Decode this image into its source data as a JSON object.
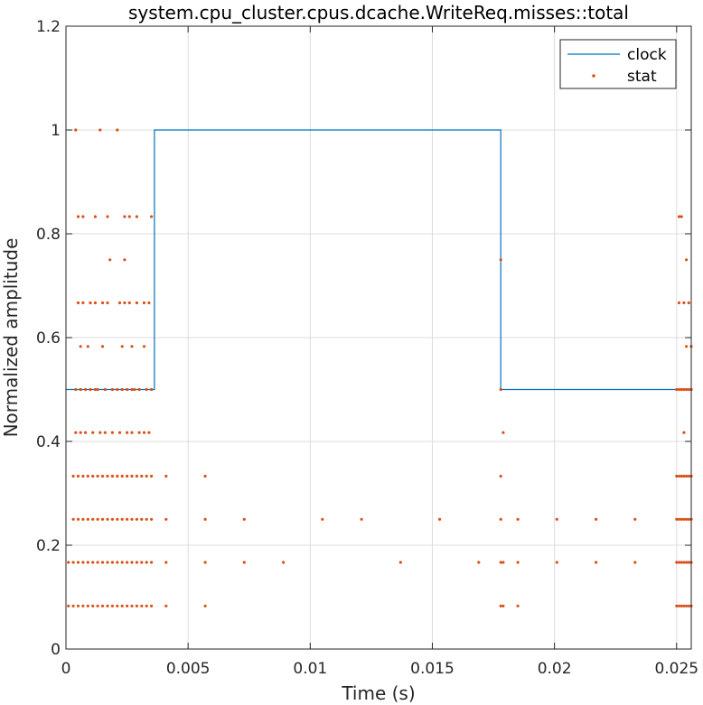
{
  "chart_data": {
    "type": "line",
    "title": "system.cpu_cluster.cpus.dcache.WriteReq.misses::total",
    "xlabel": "Time (s)",
    "ylabel": "Normalized amplitude",
    "xlim": [
      0,
      0.0256
    ],
    "ylim": [
      0,
      1.2
    ],
    "xticks": [
      0,
      0.005,
      0.01,
      0.015,
      0.02,
      0.025
    ],
    "xtick_labels": [
      "0",
      "0.005",
      "0.01",
      "0.015",
      "0.02",
      "0.025"
    ],
    "yticks": [
      0,
      0.2,
      0.4,
      0.6,
      0.8,
      1,
      1.2
    ],
    "ytick_labels": [
      "0",
      "0.2",
      "0.4",
      "0.6",
      "0.8",
      "1",
      "1.2"
    ],
    "grid": true,
    "legend_position": "top-right",
    "colors": {
      "clock": "#0072BD",
      "stat": "#D95319"
    },
    "series": [
      {
        "name": "clock",
        "kind": "step-line",
        "x": [
          0,
          0.00362,
          0.00362,
          0.0178,
          0.0178,
          0.0256
        ],
        "y": [
          0.5,
          0.5,
          1.0,
          1.0,
          0.5,
          0.5
        ]
      },
      {
        "name": "stat",
        "kind": "scatter",
        "points": [
          [
            0.0004,
            1.0
          ],
          [
            0.0014,
            1.0
          ],
          [
            0.0021,
            1.0
          ],
          [
            0.0005,
            0.833
          ],
          [
            0.0007,
            0.833
          ],
          [
            0.0012,
            0.833
          ],
          [
            0.0017,
            0.833
          ],
          [
            0.0024,
            0.833
          ],
          [
            0.0026,
            0.833
          ],
          [
            0.0029,
            0.833
          ],
          [
            0.0035,
            0.833
          ],
          [
            0.0018,
            0.75
          ],
          [
            0.0024,
            0.75
          ],
          [
            0.0005,
            0.667
          ],
          [
            0.0007,
            0.667
          ],
          [
            0.001,
            0.667
          ],
          [
            0.0012,
            0.667
          ],
          [
            0.0015,
            0.667
          ],
          [
            0.0017,
            0.667
          ],
          [
            0.0022,
            0.667
          ],
          [
            0.0024,
            0.667
          ],
          [
            0.0026,
            0.667
          ],
          [
            0.0029,
            0.667
          ],
          [
            0.0032,
            0.667
          ],
          [
            0.0034,
            0.667
          ],
          [
            0.0006,
            0.583
          ],
          [
            0.0009,
            0.583
          ],
          [
            0.0015,
            0.583
          ],
          [
            0.0023,
            0.583
          ],
          [
            0.0027,
            0.583
          ],
          [
            0.0032,
            0.583
          ],
          [
            0.0004,
            0.5
          ],
          [
            0.0006,
            0.5
          ],
          [
            0.0008,
            0.5
          ],
          [
            0.001,
            0.5
          ],
          [
            0.0012,
            0.5
          ],
          [
            0.0013,
            0.5
          ],
          [
            0.0016,
            0.5
          ],
          [
            0.0019,
            0.5
          ],
          [
            0.0021,
            0.5
          ],
          [
            0.0023,
            0.5
          ],
          [
            0.0025,
            0.5
          ],
          [
            0.0027,
            0.5
          ],
          [
            0.0028,
            0.5
          ],
          [
            0.003,
            0.5
          ],
          [
            0.0033,
            0.5
          ],
          [
            0.0035,
            0.5
          ],
          [
            0.0004,
            0.417
          ],
          [
            0.0006,
            0.417
          ],
          [
            0.0008,
            0.417
          ],
          [
            0.0011,
            0.417
          ],
          [
            0.0014,
            0.417
          ],
          [
            0.0016,
            0.417
          ],
          [
            0.0019,
            0.417
          ],
          [
            0.0022,
            0.417
          ],
          [
            0.0025,
            0.417
          ],
          [
            0.0027,
            0.417
          ],
          [
            0.003,
            0.417
          ],
          [
            0.0032,
            0.417
          ],
          [
            0.0034,
            0.417
          ],
          [
            0.0003,
            0.333
          ],
          [
            0.0005,
            0.333
          ],
          [
            0.0007,
            0.333
          ],
          [
            0.0009,
            0.333
          ],
          [
            0.0011,
            0.333
          ],
          [
            0.0013,
            0.333
          ],
          [
            0.0015,
            0.333
          ],
          [
            0.0017,
            0.333
          ],
          [
            0.0019,
            0.333
          ],
          [
            0.0021,
            0.333
          ],
          [
            0.0023,
            0.333
          ],
          [
            0.0025,
            0.333
          ],
          [
            0.0027,
            0.333
          ],
          [
            0.0029,
            0.333
          ],
          [
            0.0031,
            0.333
          ],
          [
            0.0033,
            0.333
          ],
          [
            0.0035,
            0.333
          ],
          [
            0.0041,
            0.333
          ],
          [
            0.0057,
            0.333
          ],
          [
            0.0003,
            0.25
          ],
          [
            0.0005,
            0.25
          ],
          [
            0.0007,
            0.25
          ],
          [
            0.0009,
            0.25
          ],
          [
            0.0011,
            0.25
          ],
          [
            0.0013,
            0.25
          ],
          [
            0.0015,
            0.25
          ],
          [
            0.0017,
            0.25
          ],
          [
            0.0019,
            0.25
          ],
          [
            0.0021,
            0.25
          ],
          [
            0.0023,
            0.25
          ],
          [
            0.0025,
            0.25
          ],
          [
            0.0027,
            0.25
          ],
          [
            0.0029,
            0.25
          ],
          [
            0.0031,
            0.25
          ],
          [
            0.0033,
            0.25
          ],
          [
            0.0035,
            0.25
          ],
          [
            0.0041,
            0.25
          ],
          [
            0.0057,
            0.25
          ],
          [
            0.0073,
            0.25
          ],
          [
            0.0105,
            0.25
          ],
          [
            0.0121,
            0.25
          ],
          [
            0.0153,
            0.25
          ],
          [
            0.0001,
            0.167
          ],
          [
            0.0003,
            0.167
          ],
          [
            0.0005,
            0.167
          ],
          [
            0.0007,
            0.167
          ],
          [
            0.0009,
            0.167
          ],
          [
            0.0011,
            0.167
          ],
          [
            0.0013,
            0.167
          ],
          [
            0.0015,
            0.167
          ],
          [
            0.0017,
            0.167
          ],
          [
            0.0019,
            0.167
          ],
          [
            0.0021,
            0.167
          ],
          [
            0.0023,
            0.167
          ],
          [
            0.0025,
            0.167
          ],
          [
            0.0027,
            0.167
          ],
          [
            0.0029,
            0.167
          ],
          [
            0.0031,
            0.167
          ],
          [
            0.0033,
            0.167
          ],
          [
            0.0035,
            0.167
          ],
          [
            0.0041,
            0.167
          ],
          [
            0.0057,
            0.167
          ],
          [
            0.0073,
            0.167
          ],
          [
            0.0089,
            0.167
          ],
          [
            0.0137,
            0.167
          ],
          [
            0.0169,
            0.167
          ],
          [
            0.0001,
            0.083
          ],
          [
            0.0003,
            0.083
          ],
          [
            0.0005,
            0.083
          ],
          [
            0.0007,
            0.083
          ],
          [
            0.0009,
            0.083
          ],
          [
            0.0011,
            0.083
          ],
          [
            0.0013,
            0.083
          ],
          [
            0.0015,
            0.083
          ],
          [
            0.0017,
            0.083
          ],
          [
            0.0019,
            0.083
          ],
          [
            0.0021,
            0.083
          ],
          [
            0.0023,
            0.083
          ],
          [
            0.0025,
            0.083
          ],
          [
            0.0027,
            0.083
          ],
          [
            0.0029,
            0.083
          ],
          [
            0.0031,
            0.083
          ],
          [
            0.0033,
            0.083
          ],
          [
            0.0035,
            0.083
          ],
          [
            0.0041,
            0.083
          ],
          [
            0.0057,
            0.083
          ],
          [
            0.0178,
            0.75
          ],
          [
            0.0178,
            0.5
          ],
          [
            0.0179,
            0.417
          ],
          [
            0.0178,
            0.333
          ],
          [
            0.0178,
            0.25
          ],
          [
            0.0185,
            0.25
          ],
          [
            0.0201,
            0.25
          ],
          [
            0.0217,
            0.25
          ],
          [
            0.0233,
            0.25
          ],
          [
            0.0178,
            0.167
          ],
          [
            0.0179,
            0.167
          ],
          [
            0.0185,
            0.167
          ],
          [
            0.0201,
            0.167
          ],
          [
            0.0217,
            0.167
          ],
          [
            0.0233,
            0.167
          ],
          [
            0.0178,
            0.083
          ],
          [
            0.0179,
            0.083
          ],
          [
            0.0185,
            0.083
          ],
          [
            0.0251,
            0.833
          ],
          [
            0.0252,
            0.833
          ],
          [
            0.0254,
            0.75
          ],
          [
            0.0251,
            0.667
          ],
          [
            0.0253,
            0.667
          ],
          [
            0.0255,
            0.667
          ],
          [
            0.0254,
            0.583
          ],
          [
            0.0256,
            0.583
          ],
          [
            0.025,
            0.5
          ],
          [
            0.0251,
            0.5
          ],
          [
            0.0252,
            0.5
          ],
          [
            0.0253,
            0.5
          ],
          [
            0.0254,
            0.5
          ],
          [
            0.0255,
            0.5
          ],
          [
            0.0256,
            0.5
          ],
          [
            0.0253,
            0.417
          ],
          [
            0.025,
            0.333
          ],
          [
            0.0251,
            0.333
          ],
          [
            0.0252,
            0.333
          ],
          [
            0.0253,
            0.333
          ],
          [
            0.0254,
            0.333
          ],
          [
            0.0255,
            0.333
          ],
          [
            0.0256,
            0.333
          ],
          [
            0.025,
            0.25
          ],
          [
            0.0251,
            0.25
          ],
          [
            0.0252,
            0.25
          ],
          [
            0.0253,
            0.25
          ],
          [
            0.0254,
            0.25
          ],
          [
            0.0255,
            0.25
          ],
          [
            0.0256,
            0.25
          ],
          [
            0.025,
            0.167
          ],
          [
            0.0251,
            0.167
          ],
          [
            0.0252,
            0.167
          ],
          [
            0.0253,
            0.167
          ],
          [
            0.0254,
            0.167
          ],
          [
            0.0255,
            0.167
          ],
          [
            0.0256,
            0.167
          ],
          [
            0.025,
            0.083
          ],
          [
            0.0251,
            0.083
          ],
          [
            0.0252,
            0.083
          ],
          [
            0.0253,
            0.083
          ],
          [
            0.0254,
            0.083
          ],
          [
            0.0255,
            0.083
          ],
          [
            0.0256,
            0.083
          ]
        ]
      }
    ]
  }
}
